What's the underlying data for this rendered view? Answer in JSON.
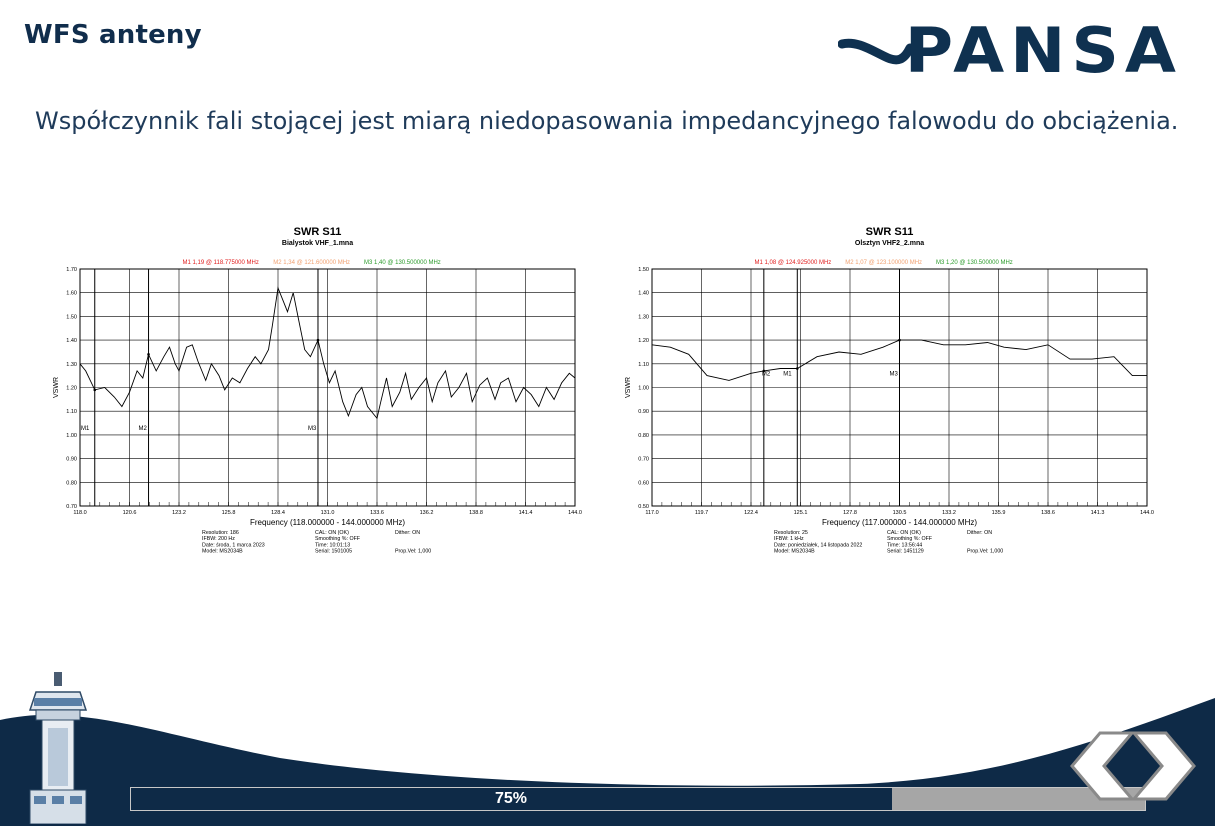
{
  "header": {
    "title": "WFS anteny",
    "logo_text": "PANSA",
    "subtitle": "Współczynnik fali stojącej jest miarą niedopasowania impedancyjnego falowodu do obciążenia."
  },
  "plots": [
    {
      "title": "SWR S11",
      "subtitle": "Bialystok VHF_1.mna",
      "markers_line": [
        {
          "text": "M1  1,19 @ 118.775000 MHz",
          "color": "#e02020"
        },
        {
          "text": "M2  1,34 @ 121.600000 MHz",
          "color": "#f0a070"
        },
        {
          "text": "M3  1,40 @ 130.500000 MHz",
          "color": "#2a9a2a"
        }
      ],
      "ylabel": "VSWR",
      "xlabel": "Frequency (118.000000 - 144.000000 MHz)",
      "y_ticks": [
        "1.70",
        "1.60",
        "1.50",
        "1.40",
        "1.30",
        "1.20",
        "1.10",
        "1.00",
        "0.90",
        "0.80",
        "0.70"
      ],
      "x_ticks": [
        "118.0",
        "120.6",
        "123.2",
        "125.8",
        "128.4",
        "131.0",
        "133.6",
        "136.2",
        "138.8",
        "141.4",
        "144.0"
      ],
      "marker_labels": [
        "M1",
        "M2",
        "M3"
      ],
      "info": [
        [
          "Resolution: 186",
          "CAL: ON (OK)",
          "Dither:  ON"
        ],
        [
          "IFBW: 200 Hz",
          "Smoothing %:  OFF",
          ""
        ],
        [
          "Date: środa, 1 marca 2023",
          "Time: 10:01:13",
          ""
        ],
        [
          "Model: MS2034B",
          "Serial: 1501005",
          "Prop.Vel: 1,000"
        ]
      ]
    },
    {
      "title": "SWR S11",
      "subtitle": "Olsztyn VHF2_2.mna",
      "markers_line": [
        {
          "text": "M1  1,08 @ 124.925000 MHz",
          "color": "#e02020"
        },
        {
          "text": "M2  1,07 @ 123.100000 MHz",
          "color": "#f0a070"
        },
        {
          "text": "M3  1,20 @ 130.500000 MHz",
          "color": "#2a9a2a"
        }
      ],
      "ylabel": "VSWR",
      "xlabel": "Frequency (117.000000 - 144.000000 MHz)",
      "y_ticks": [
        "1.50",
        "1.40",
        "1.30",
        "1.20",
        "1.10",
        "1.00",
        "0.90",
        "0.80",
        "0.70",
        "0.60",
        "0.50"
      ],
      "x_ticks": [
        "117.0",
        "119.7",
        "122.4",
        "125.1",
        "127.8",
        "130.5",
        "133.2",
        "135.9",
        "138.6",
        "141.3",
        "144.0"
      ],
      "marker_labels": [
        "M2",
        "M1",
        "M3"
      ],
      "info": [
        [
          "Resolution: 25",
          "CAL: ON (OK)",
          "Dither:  ON"
        ],
        [
          "IFBW: 1 kHz",
          "Smoothing %:  OFF",
          ""
        ],
        [
          "Date: poniedziałek, 14 listopada 2022",
          "Time: 13:56:44",
          ""
        ],
        [
          "Model: MS2034B",
          "Serial: 1451129",
          "Prop.Vel: 1,000"
        ]
      ]
    }
  ],
  "chart_data": [
    {
      "type": "line",
      "title": "SWR S11",
      "subtitle": "Bialystok VHF_1.mna",
      "xlabel": "Frequency (118.000000 - 144.000000 MHz)",
      "ylabel": "VSWR",
      "xlim": [
        118.0,
        144.0
      ],
      "ylim": [
        0.7,
        1.7
      ],
      "grid": true,
      "series": [
        {
          "values": [
            [
              118.0,
              1.3
            ],
            [
              118.3,
              1.27
            ],
            [
              118.775,
              1.19
            ],
            [
              119.3,
              1.2
            ],
            [
              119.8,
              1.16
            ],
            [
              120.2,
              1.12
            ],
            [
              120.6,
              1.18
            ],
            [
              121.0,
              1.27
            ],
            [
              121.3,
              1.24
            ],
            [
              121.6,
              1.34
            ],
            [
              122.0,
              1.27
            ],
            [
              122.4,
              1.33
            ],
            [
              122.7,
              1.37
            ],
            [
              123.0,
              1.3
            ],
            [
              123.2,
              1.27
            ],
            [
              123.6,
              1.37
            ],
            [
              123.9,
              1.38
            ],
            [
              124.2,
              1.31
            ],
            [
              124.6,
              1.23
            ],
            [
              124.9,
              1.3
            ],
            [
              125.3,
              1.25
            ],
            [
              125.6,
              1.19
            ],
            [
              126.0,
              1.24
            ],
            [
              126.4,
              1.22
            ],
            [
              126.8,
              1.28
            ],
            [
              127.2,
              1.33
            ],
            [
              127.5,
              1.3
            ],
            [
              127.9,
              1.36
            ],
            [
              128.1,
              1.46
            ],
            [
              128.4,
              1.62
            ],
            [
              128.7,
              1.56
            ],
            [
              128.9,
              1.52
            ],
            [
              129.2,
              1.6
            ],
            [
              129.5,
              1.48
            ],
            [
              129.8,
              1.36
            ],
            [
              130.1,
              1.33
            ],
            [
              130.5,
              1.4
            ],
            [
              130.8,
              1.3
            ],
            [
              131.1,
              1.22
            ],
            [
              131.4,
              1.27
            ],
            [
              131.8,
              1.14
            ],
            [
              132.1,
              1.08
            ],
            [
              132.5,
              1.17
            ],
            [
              132.8,
              1.2
            ],
            [
              133.1,
              1.12
            ],
            [
              133.4,
              1.09
            ],
            [
              133.6,
              1.07
            ],
            [
              133.8,
              1.14
            ],
            [
              134.1,
              1.24
            ],
            [
              134.4,
              1.12
            ],
            [
              134.8,
              1.18
            ],
            [
              135.1,
              1.26
            ],
            [
              135.4,
              1.15
            ],
            [
              135.8,
              1.2
            ],
            [
              136.2,
              1.24
            ],
            [
              136.5,
              1.14
            ],
            [
              136.8,
              1.22
            ],
            [
              137.2,
              1.27
            ],
            [
              137.5,
              1.16
            ],
            [
              137.9,
              1.2
            ],
            [
              138.3,
              1.26
            ],
            [
              138.6,
              1.14
            ],
            [
              139.0,
              1.21
            ],
            [
              139.4,
              1.24
            ],
            [
              139.8,
              1.15
            ],
            [
              140.1,
              1.22
            ],
            [
              140.5,
              1.24
            ],
            [
              140.9,
              1.14
            ],
            [
              141.3,
              1.2
            ],
            [
              141.7,
              1.17
            ],
            [
              142.1,
              1.12
            ],
            [
              142.5,
              1.2
            ],
            [
              142.9,
              1.15
            ],
            [
              143.3,
              1.22
            ],
            [
              143.7,
              1.26
            ],
            [
              144.0,
              1.24
            ]
          ]
        }
      ],
      "markers": [
        {
          "name": "M1",
          "x": 118.775,
          "y": 1.19
        },
        {
          "name": "M2",
          "x": 121.6,
          "y": 1.34
        },
        {
          "name": "M3",
          "x": 130.5,
          "y": 1.4
        }
      ]
    },
    {
      "type": "line",
      "title": "SWR S11",
      "subtitle": "Olsztyn VHF2_2.mna",
      "xlabel": "Frequency (117.000000 - 144.000000 MHz)",
      "ylabel": "VSWR",
      "xlim": [
        117.0,
        144.0
      ],
      "ylim": [
        0.5,
        1.5
      ],
      "grid": true,
      "series": [
        {
          "values": [
            [
              117.0,
              1.18
            ],
            [
              118.0,
              1.17
            ],
            [
              119.0,
              1.14
            ],
            [
              120.0,
              1.05
            ],
            [
              121.2,
              1.03
            ],
            [
              122.4,
              1.06
            ],
            [
              123.1,
              1.07
            ],
            [
              124.0,
              1.08
            ],
            [
              124.925,
              1.08
            ],
            [
              126.0,
              1.13
            ],
            [
              127.2,
              1.15
            ],
            [
              128.4,
              1.14
            ],
            [
              129.6,
              1.17
            ],
            [
              130.5,
              1.2
            ],
            [
              131.7,
              1.2
            ],
            [
              132.9,
              1.18
            ],
            [
              134.1,
              1.18
            ],
            [
              135.3,
              1.19
            ],
            [
              136.2,
              1.17
            ],
            [
              137.4,
              1.16
            ],
            [
              138.6,
              1.18
            ],
            [
              139.8,
              1.12
            ],
            [
              141.0,
              1.12
            ],
            [
              142.2,
              1.13
            ],
            [
              143.2,
              1.05
            ],
            [
              144.0,
              1.05
            ]
          ]
        }
      ],
      "markers": [
        {
          "name": "M1",
          "x": 124.925,
          "y": 1.08
        },
        {
          "name": "M2",
          "x": 123.1,
          "y": 1.07
        },
        {
          "name": "M3",
          "x": 130.5,
          "y": 1.2
        }
      ]
    }
  ],
  "progress": {
    "label": "75%",
    "value": 0.75
  },
  "colors": {
    "navy": "#0e2a47",
    "progress_track": "#a6a6a6"
  },
  "icons": {
    "prev": "chevron-left-icon",
    "next": "chevron-right-icon",
    "tower": "control-tower-icon"
  }
}
